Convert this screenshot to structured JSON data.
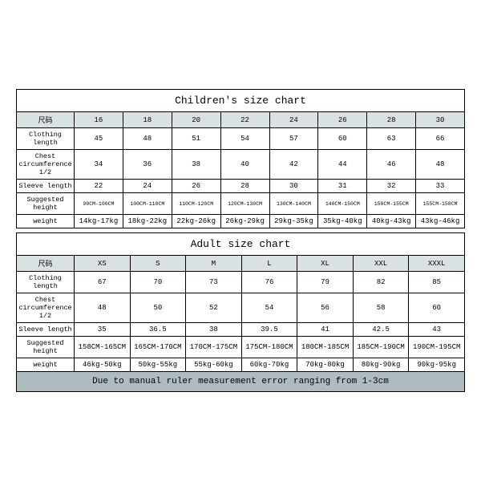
{
  "children_chart": {
    "title": "Children's size chart",
    "header_label": "尺码",
    "sizes": [
      "16",
      "18",
      "20",
      "22",
      "24",
      "26",
      "28",
      "30"
    ],
    "rows": [
      {
        "label": "Clothing length",
        "values": [
          "45",
          "48",
          "51",
          "54",
          "57",
          "60",
          "63",
          "66"
        ],
        "small": false
      },
      {
        "label": "Chest circumference 1/2",
        "values": [
          "34",
          "36",
          "38",
          "40",
          "42",
          "44",
          "46",
          "48"
        ],
        "small": false
      },
      {
        "label": "Sleeve length",
        "values": [
          "22",
          "24",
          "26",
          "28",
          "30",
          "31",
          "32",
          "33"
        ],
        "small": false
      },
      {
        "label": "Suggested height",
        "values": [
          "90CM-100CM",
          "100CM-110CM",
          "110CM-120CM",
          "120CM-130CM",
          "130CM-140CM",
          "140CM-150CM",
          "150CM-155CM",
          "155CM-158CM"
        ],
        "small": true
      },
      {
        "label": "weight",
        "values": [
          "14kg-17kg",
          "18kg-22kg",
          "22kg-26kg",
          "26kg-29kg",
          "29kg-35kg",
          "35kg-40kg",
          "40kg-43kg",
          "43kg-46kg"
        ],
        "small": false
      }
    ]
  },
  "adult_chart": {
    "title": "Adult size chart",
    "header_label": "尺码",
    "sizes": [
      "XS",
      "S",
      "M",
      "L",
      "XL",
      "XXL",
      "XXXL"
    ],
    "rows": [
      {
        "label": "Clothing length",
        "values": [
          "67",
          "70",
          "73",
          "76",
          "79",
          "82",
          "85"
        ],
        "small": false
      },
      {
        "label": "Chest circumference 1/2",
        "values": [
          "48",
          "50",
          "52",
          "54",
          "56",
          "58",
          "60"
        ],
        "small": false
      },
      {
        "label": "Sleeve length",
        "values": [
          "35",
          "36.5",
          "38",
          "39.5",
          "41",
          "42.5",
          "43"
        ],
        "small": false
      },
      {
        "label": "Suggested height",
        "values": [
          "158CM-165CM",
          "165CM-170CM",
          "170CM-175CM",
          "175CM-180CM",
          "180CM-185CM",
          "185CM-190CM",
          "190CM-195CM"
        ],
        "small": false
      },
      {
        "label": "weight",
        "values": [
          "46kg-50kg",
          "50kg-55kg",
          "55kg-60kg",
          "60kg-70kg",
          "70kg-80kg",
          "80kg-90kg",
          "90kg-95kg"
        ],
        "small": false
      }
    ],
    "footer": "Due to manual ruler measurement error ranging from 1-3cm"
  },
  "colors": {
    "header_bg": "#d9e1e2",
    "footer_bg": "#aebcc0",
    "border": "#000000",
    "background": "#ffffff"
  }
}
